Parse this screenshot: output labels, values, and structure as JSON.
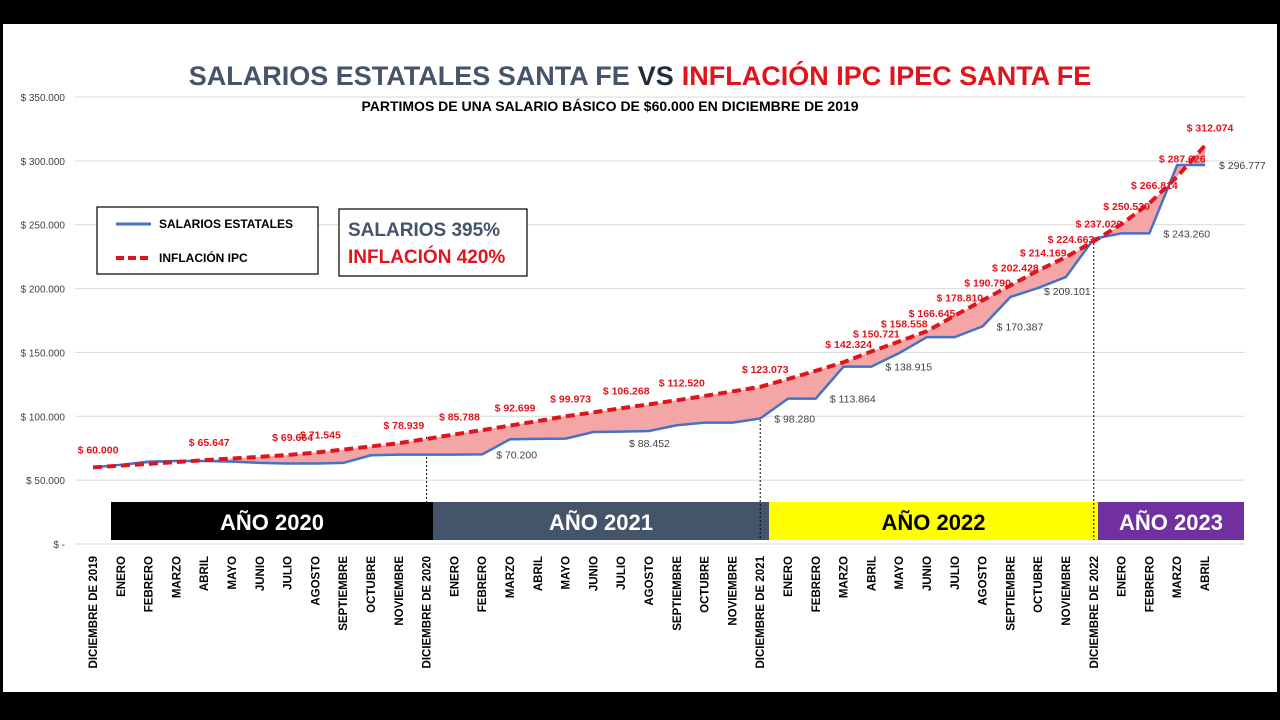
{
  "chart_data": {
    "type": "line",
    "title_part1": "SALARIOS ESTATALES SANTA FE",
    "title_vs": "VS",
    "title_part2": "INFLACIÓN IPC IPEC SANTA FE",
    "subtitle": "PARTIMOS DE UNA SALARIO BÁSICO DE $60.000 EN DICIEMBRE DE 2019",
    "ylim": [
      0,
      350000
    ],
    "yticks": [
      {
        "value": 0,
        "label": "$ -"
      },
      {
        "value": 50000,
        "label": "$ 50.000"
      },
      {
        "value": 100000,
        "label": "$ 100.000"
      },
      {
        "value": 150000,
        "label": "$ 150.000"
      },
      {
        "value": 200000,
        "label": "$ 200.000"
      },
      {
        "value": 250000,
        "label": "$ 250.000"
      },
      {
        "value": 300000,
        "label": "$ 300.000"
      },
      {
        "value": 350000,
        "label": "$ 350.000"
      }
    ],
    "grid": true,
    "categories": [
      "DICIEMBRE DE 2019",
      "ENERO",
      "FEBRERO",
      "MARZO",
      "ABRIL",
      "MAYO",
      "JUNIO",
      "JULIO",
      "AGOSTO",
      "SEPTIEMBRE",
      "OCTUBRE",
      "NOVIEMBRE",
      "DICIEMBRE DE 2020",
      "ENERO",
      "FEBRERO",
      "MARZO",
      "ABRIL",
      "MAYO",
      "JUNIO",
      "JULIO",
      "AGOSTO",
      "SEPTIEMBRE",
      "OCTUBRE",
      "NOVIEMBRE",
      "DICIEMBRE DE 2021",
      "ENERO",
      "FEBRERO",
      "MARZO",
      "ABRIL",
      "MAYO",
      "JUNIO",
      "JULIO",
      "AGOSTO",
      "SEPTIEMBRE",
      "OCTUBRE",
      "NOVIEMBRE",
      "DICIEMBRE DE 2022",
      "ENERO",
      "FEBRERO",
      "MARZO",
      "ABRIL"
    ],
    "series": [
      {
        "name": "SALARIOS ESTATALES",
        "color": "#4472c4",
        "style": "solid",
        "values": [
          60000,
          62000,
          64500,
          65000,
          65000,
          64500,
          63500,
          63000,
          63000,
          63500,
          69500,
          70000,
          70000,
          70000,
          70200,
          82000,
          82300,
          82500,
          87700,
          88000,
          88452,
          93000,
          95000,
          95000,
          98280,
          113864,
          113864,
          138915,
          138915,
          149500,
          162000,
          162000,
          170387,
          193400,
          200500,
          209101,
          239000,
          243260,
          243260,
          296777,
          296777
        ],
        "labeled_indices": [
          14,
          20,
          24,
          26,
          28,
          32,
          35,
          38,
          40
        ]
      },
      {
        "name": "INFLACIÓN IPC",
        "color": "#e0141c",
        "style": "dashed",
        "values": [
          60000,
          61362,
          62755,
          64179,
          65647,
          66960,
          68300,
          69664,
          71545,
          73928,
          76390,
          78939,
          82294,
          85788,
          89178,
          92699,
          96270,
          99973,
          103072,
          106268,
          109348,
          112520,
          115940,
          119440,
          123073,
          129180,
          135590,
          142324,
          150721,
          158558,
          166645,
          178810,
          190790,
          202428,
          214169,
          224663,
          237020,
          250530,
          266814,
          287626,
          312074
        ],
        "labeled_indices": [
          0,
          4,
          7,
          8,
          11,
          13,
          15,
          17,
          19,
          21,
          24,
          27,
          28,
          29,
          30,
          31,
          32,
          33,
          34,
          35,
          36,
          37,
          38,
          39,
          40
        ]
      }
    ],
    "gap_fill_color": "#f4a6a6",
    "years": [
      {
        "label": "AÑO 2020",
        "bg": "#000000",
        "fg": "#ffffff"
      },
      {
        "label": "AÑO 2021",
        "bg": "#44546a",
        "fg": "#ffffff"
      },
      {
        "label": "AÑO 2022",
        "bg": "#ffff00",
        "fg": "#000000"
      },
      {
        "label": "AÑO 2023",
        "bg": "#7030a0",
        "fg": "#ffffff"
      }
    ],
    "legend": {
      "placement": "top-left",
      "items": [
        "SALARIOS ESTATALES",
        "INFLACIÓN IPC"
      ]
    },
    "summary": {
      "salarios": "SALARIOS 395%",
      "inflacion": "INFLACIÓN 420%",
      "salarios_color": "#44546a",
      "inflacion_color": "#e0141c"
    }
  }
}
